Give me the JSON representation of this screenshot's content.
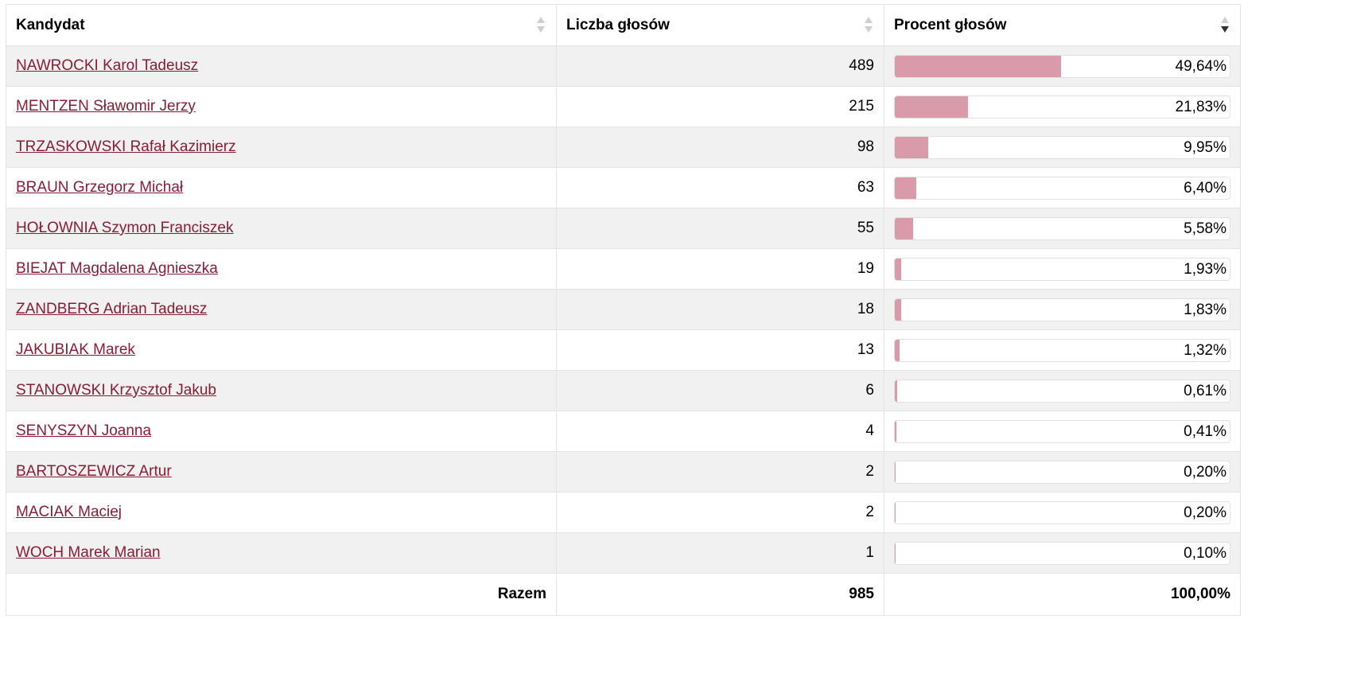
{
  "headers": {
    "candidate": "Kandydat",
    "votes": "Liczba głosów",
    "percent": "Procent głosów"
  },
  "rows": [
    {
      "name": "NAWROCKI Karol Tadeusz",
      "votes": "489",
      "percent": "49,64%",
      "share": 49.64
    },
    {
      "name": "MENTZEN Sławomir Jerzy",
      "votes": "215",
      "percent": "21,83%",
      "share": 21.83
    },
    {
      "name": "TRZASKOWSKI Rafał Kazimierz",
      "votes": "98",
      "percent": "9,95%",
      "share": 9.95
    },
    {
      "name": "BRAUN Grzegorz Michał",
      "votes": "63",
      "percent": "6,40%",
      "share": 6.4
    },
    {
      "name": "HOŁOWNIA Szymon Franciszek",
      "votes": "55",
      "percent": "5,58%",
      "share": 5.58
    },
    {
      "name": "BIEJAT Magdalena Agnieszka",
      "votes": "19",
      "percent": "1,93%",
      "share": 1.93
    },
    {
      "name": "ZANDBERG Adrian Tadeusz",
      "votes": "18",
      "percent": "1,83%",
      "share": 1.83
    },
    {
      "name": "JAKUBIAK Marek",
      "votes": "13",
      "percent": "1,32%",
      "share": 1.32
    },
    {
      "name": "STANOWSKI Krzysztof Jakub",
      "votes": "6",
      "percent": "0,61%",
      "share": 0.61
    },
    {
      "name": "SENYSZYN Joanna",
      "votes": "4",
      "percent": "0,41%",
      "share": 0.41
    },
    {
      "name": "BARTOSZEWICZ Artur",
      "votes": "2",
      "percent": "0,20%",
      "share": 0.2
    },
    {
      "name": "MACIAK Maciej",
      "votes": "2",
      "percent": "0,20%",
      "share": 0.2
    },
    {
      "name": "WOCH Marek Marian",
      "votes": "1",
      "percent": "0,10%",
      "share": 0.1
    }
  ],
  "footer": {
    "label": "Razem",
    "votes": "985",
    "percent": "100,00%"
  },
  "colors": {
    "link": "#8a1c35",
    "bar_fill": "#d99ba9",
    "odd_row": "#f1f1f1"
  },
  "sort": {
    "active_column": "percent",
    "direction": "descending"
  }
}
